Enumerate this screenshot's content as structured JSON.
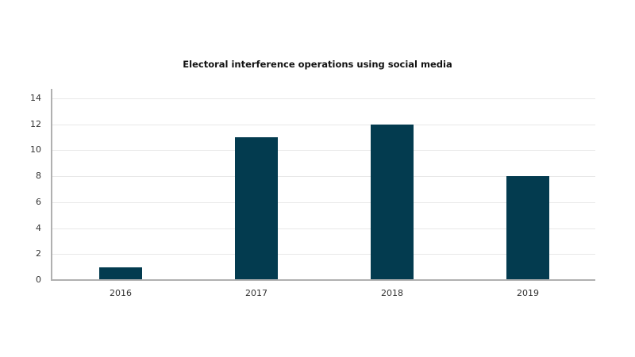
{
  "chart_data": {
    "type": "bar",
    "title": "Electoral interference operations using social media",
    "categories": [
      "2016",
      "2017",
      "2018",
      "2019"
    ],
    "values": [
      1,
      11,
      12,
      8
    ],
    "xlabel": "",
    "ylabel": "",
    "ylim": [
      0,
      14
    ],
    "yticks": [
      "0",
      "2",
      "4",
      "6",
      "8",
      "10",
      "12",
      "14"
    ],
    "grid": true,
    "legend": null,
    "bar_color": "#033b4f"
  }
}
